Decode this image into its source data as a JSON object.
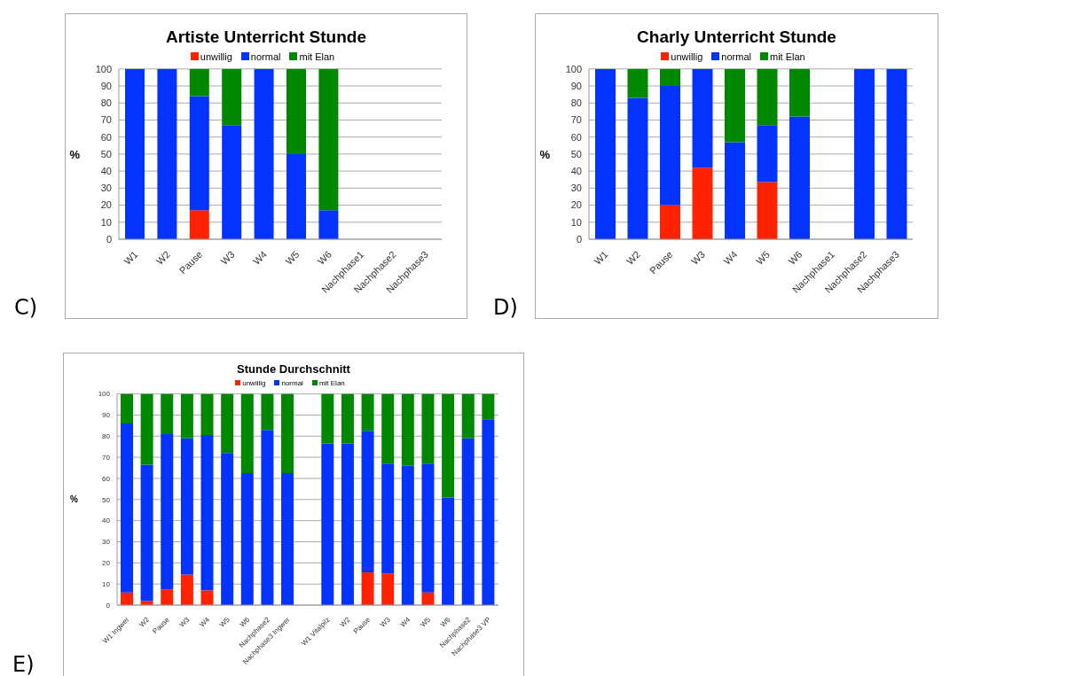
{
  "chart_data": [
    {
      "type": "bar",
      "title": "Artiste Unterricht Stunde",
      "ylabel": "%",
      "annotations": [
        "C)"
      ],
      "stacked": true,
      "legend": "top",
      "grid": "y",
      "ylim": [
        0,
        100
      ],
      "yticks": [
        0,
        10,
        20,
        30,
        40,
        50,
        60,
        70,
        80,
        90,
        100
      ],
      "categories": [
        "W1",
        "W2",
        "Pause",
        "W3",
        "W4",
        "W5",
        "W6",
        "Nachphase1",
        "Nachphase2",
        "Nachphase3"
      ],
      "series": [
        {
          "name": "unwillig",
          "color": "#ff2200",
          "values": [
            0,
            0,
            17,
            0,
            0,
            0,
            0,
            null,
            null,
            null
          ]
        },
        {
          "name": "normal",
          "color": "#0433ff",
          "values": [
            100,
            100,
            67,
            67,
            100,
            50,
            17,
            null,
            null,
            null
          ]
        },
        {
          "name": "mit Elan",
          "color": "#008800",
          "values": [
            0,
            0,
            16,
            33,
            0,
            50,
            83,
            null,
            null,
            null
          ]
        }
      ]
    },
    {
      "type": "bar",
      "title": "Charly Unterricht Stunde",
      "ylabel": "%",
      "annotations": [
        "D)"
      ],
      "stacked": true,
      "legend": "top",
      "grid": "y",
      "ylim": [
        0,
        100
      ],
      "yticks": [
        0,
        10,
        20,
        30,
        40,
        50,
        60,
        70,
        80,
        90,
        100
      ],
      "categories": [
        "W1",
        "W2",
        "Pause",
        "W3",
        "W4",
        "W5",
        "W6",
        "Nachphase1",
        "Nachphase2",
        "Nachphase3"
      ],
      "series": [
        {
          "name": "unwillig",
          "color": "#ff2200",
          "values": [
            0,
            0,
            20,
            42,
            0,
            33.5,
            0,
            null,
            0,
            0
          ]
        },
        {
          "name": "normal",
          "color": "#0433ff",
          "values": [
            100,
            83,
            70,
            58,
            57,
            33.5,
            72,
            null,
            100,
            100
          ]
        },
        {
          "name": "mit Elan",
          "color": "#008800",
          "values": [
            0,
            17,
            10,
            0,
            43,
            33,
            28,
            null,
            0,
            0
          ]
        }
      ]
    },
    {
      "type": "bar",
      "title": "Stunde Durchschnitt",
      "ylabel": "%",
      "annotations": [
        "E)"
      ],
      "stacked": true,
      "legend": "top",
      "grid": "y",
      "ylim": [
        0,
        100
      ],
      "yticks": [
        0,
        10,
        20,
        30,
        40,
        50,
        60,
        70,
        80,
        90,
        100
      ],
      "categories": [
        "W1 Ingwer",
        "W2",
        "Pause",
        "W3",
        "W4",
        "W5",
        "W6",
        "Nachphase2",
        "Nachphase3 Ingwer",
        null,
        "W1 Vitalpilz",
        "W2",
        "Pause",
        "W3",
        "W4",
        "W5",
        "W6",
        "Nachphase2",
        "Nachphase3 VP"
      ],
      "series": [
        {
          "name": "unwillig",
          "color": "#ff2200",
          "values": [
            6,
            2,
            7.5,
            14.5,
            7,
            0,
            0,
            0,
            0,
            null,
            0,
            0,
            15.5,
            15,
            0,
            6,
            0,
            0,
            0
          ]
        },
        {
          "name": "normal",
          "color": "#0433ff",
          "values": [
            80,
            64.5,
            73.5,
            64.5,
            73.5,
            72,
            62.5,
            83,
            62.5,
            null,
            76.5,
            76.5,
            67,
            52,
            66,
            61,
            51,
            79,
            88
          ]
        },
        {
          "name": "mit Elan",
          "color": "#008800",
          "values": [
            14,
            33.5,
            19,
            21,
            19.5,
            28,
            37.5,
            17,
            37.5,
            null,
            23.5,
            23.5,
            17.5,
            33,
            34,
            33,
            49,
            21,
            12
          ]
        }
      ]
    }
  ]
}
